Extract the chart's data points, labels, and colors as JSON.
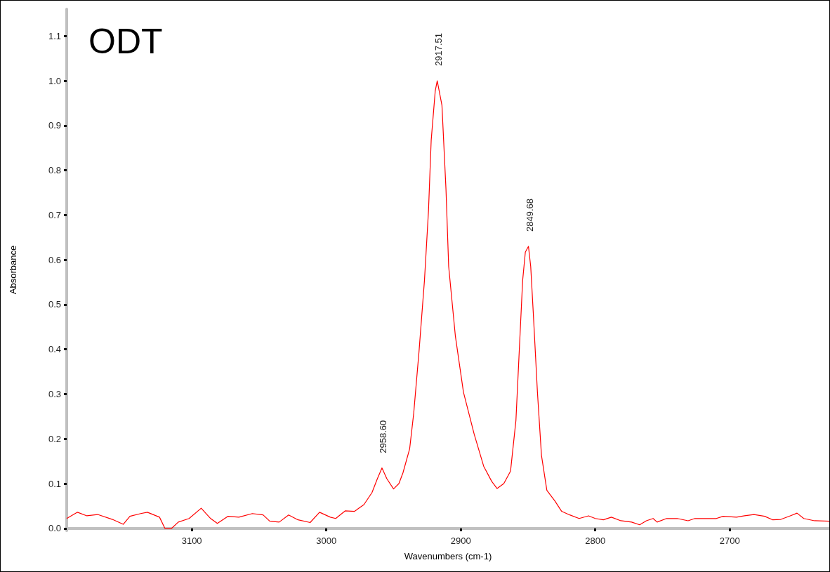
{
  "chart_data": {
    "type": "line",
    "title": "ODT",
    "xlabel": "Wavenumbers (cm-1)",
    "ylabel": "Absorbance",
    "xlim": [
      3193,
      2626
    ],
    "ylim": [
      -0.005,
      1.16
    ],
    "xticks": [
      3100,
      3000,
      2900,
      2800,
      2700
    ],
    "yticks": [
      {
        "value": 0,
        "label": "0.0"
      },
      {
        "value": 0.1,
        "label": "0.1"
      },
      {
        "value": 0.2,
        "label": "0.2"
      },
      {
        "value": 0.3,
        "label": "0.3"
      },
      {
        "value": 0.4,
        "label": "0.4"
      },
      {
        "value": 0.5,
        "label": "0.5"
      },
      {
        "value": 0.6,
        "label": "0.6"
      },
      {
        "value": 0.7,
        "label": "0.7"
      },
      {
        "value": 0.8,
        "label": "0.8"
      },
      {
        "value": 0.9,
        "label": "0.9"
      },
      {
        "value": 1,
        "label": "1.0"
      },
      {
        "value": 1.1,
        "label": "1.1"
      }
    ],
    "marker": "none",
    "line_style": "solid",
    "annotations": [
      {
        "text": "2958.60",
        "x": 2958.6,
        "y": 0.135
      },
      {
        "text": "2917.51",
        "x": 2917.51,
        "y": 1.0
      },
      {
        "text": "2849.68",
        "x": 2849.68,
        "y": 0.63
      }
    ],
    "series": [
      {
        "color": "#ff0000",
        "x": [
          3193,
          3185,
          3178,
          3170,
          3159,
          3151,
          3146,
          3138,
          3133,
          3124,
          3120,
          3115,
          3110,
          3102,
          3093,
          3086,
          3081,
          3073,
          3065,
          3055,
          3047,
          3042,
          3035,
          3028,
          3021,
          3012,
          3005,
          2997,
          2993,
          2986,
          2979,
          2972,
          2966,
          2962,
          2958.6,
          2955,
          2950,
          2946,
          2943,
          2938,
          2935,
          2931,
          2927,
          2924,
          2922,
          2919,
          2917.51,
          2914,
          2911,
          2909,
          2904,
          2898,
          2890,
          2883,
          2877,
          2873,
          2868,
          2863,
          2859,
          2856,
          2854,
          2852,
          2849.68,
          2848,
          2846,
          2843,
          2840,
          2836,
          2830,
          2825,
          2819,
          2812,
          2805,
          2800,
          2794,
          2788,
          2781,
          2773,
          2767,
          2762,
          2757,
          2754,
          2747,
          2739,
          2731,
          2726,
          2718,
          2710,
          2705,
          2695,
          2689,
          2682,
          2674,
          2668,
          2662,
          2655,
          2650,
          2645,
          2637,
          2626
        ],
        "values": [
          0.022,
          0.036,
          0.028,
          0.031,
          0.02,
          0.009,
          0.027,
          0.033,
          0.036,
          0.025,
          0.0,
          0.0,
          0.014,
          0.022,
          0.045,
          0.022,
          0.011,
          0.027,
          0.025,
          0.033,
          0.03,
          0.016,
          0.014,
          0.03,
          0.019,
          0.013,
          0.036,
          0.025,
          0.022,
          0.039,
          0.038,
          0.053,
          0.08,
          0.111,
          0.135,
          0.111,
          0.088,
          0.1,
          0.124,
          0.178,
          0.257,
          0.397,
          0.554,
          0.71,
          0.867,
          0.977,
          1.0,
          0.945,
          0.757,
          0.585,
          0.429,
          0.304,
          0.21,
          0.139,
          0.105,
          0.089,
          0.1,
          0.128,
          0.241,
          0.429,
          0.554,
          0.617,
          0.63,
          0.585,
          0.476,
          0.304,
          0.163,
          0.085,
          0.061,
          0.038,
          0.03,
          0.022,
          0.028,
          0.022,
          0.019,
          0.025,
          0.017,
          0.014,
          0.008,
          0.017,
          0.022,
          0.014,
          0.022,
          0.022,
          0.017,
          0.022,
          0.022,
          0.022,
          0.027,
          0.025,
          0.028,
          0.031,
          0.027,
          0.019,
          0.02,
          0.028,
          0.034,
          0.022,
          0.017,
          0.016
        ]
      }
    ]
  }
}
